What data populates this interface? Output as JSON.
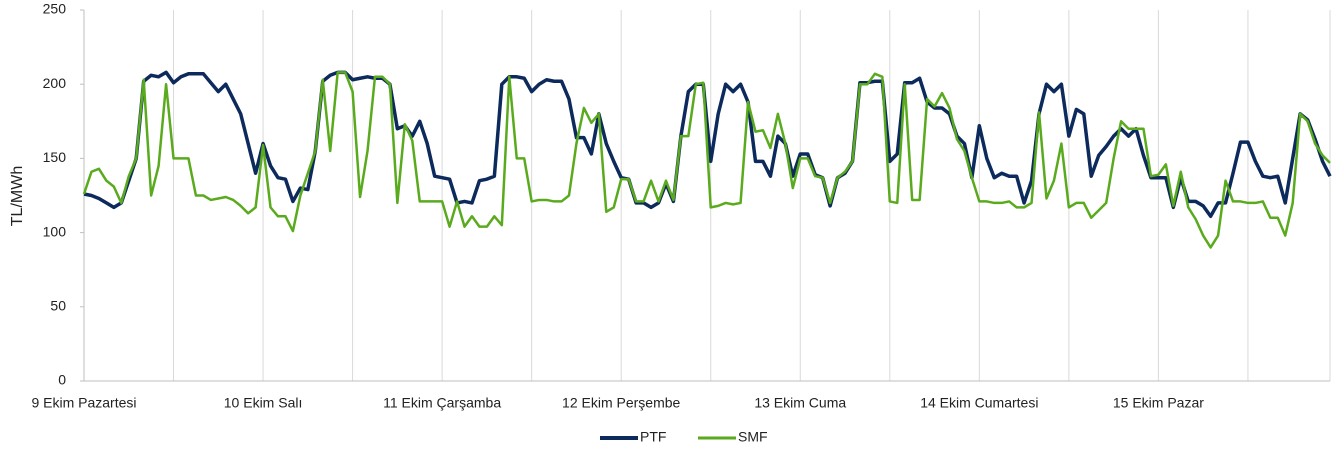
{
  "chart_data": {
    "type": "line",
    "y_label": "TL/MWh",
    "categories": [
      "9 Ekim Pazartesi",
      null,
      null,
      null,
      null,
      null,
      null,
      null,
      null,
      null,
      null,
      null,
      null,
      null,
      null,
      null,
      null,
      null,
      null,
      null,
      null,
      null,
      null,
      null,
      "10 Ekim Salı",
      null,
      null,
      null,
      null,
      null,
      null,
      null,
      null,
      null,
      null,
      null,
      null,
      null,
      null,
      null,
      null,
      null,
      null,
      null,
      null,
      null,
      null,
      null,
      "11 Ekim Çarşamba",
      null,
      null,
      null,
      null,
      null,
      null,
      null,
      null,
      null,
      null,
      null,
      null,
      null,
      null,
      null,
      null,
      null,
      null,
      null,
      null,
      null,
      null,
      null,
      "12 Ekim Perşembe",
      null,
      null,
      null,
      null,
      null,
      null,
      null,
      null,
      null,
      null,
      null,
      null,
      null,
      null,
      null,
      null,
      null,
      null,
      null,
      null,
      null,
      null,
      null,
      "13 Ekim Cuma",
      null,
      null,
      null,
      null,
      null,
      null,
      null,
      null,
      null,
      null,
      null,
      null,
      null,
      null,
      null,
      null,
      null,
      null,
      null,
      null,
      null,
      null,
      null,
      "14 Ekim Cumartesi",
      null,
      null,
      null,
      null,
      null,
      null,
      null,
      null,
      null,
      null,
      null,
      null,
      null,
      null,
      null,
      null,
      null,
      null,
      null,
      null,
      null,
      null,
      null,
      "15 Ekim Pazar",
      null,
      null,
      null,
      null,
      null,
      null,
      null,
      null,
      null,
      null,
      null,
      null,
      null,
      null,
      null,
      null,
      null,
      null,
      null,
      null,
      null,
      null,
      null
    ],
    "series": [
      {
        "name": "PTF",
        "color": "#0d2a5c",
        "values": [
          126,
          125,
          123,
          120,
          117,
          120,
          135,
          150,
          202,
          206,
          205,
          208,
          201,
          205,
          207,
          207,
          207,
          201,
          195,
          200,
          190,
          180,
          160,
          140,
          160,
          145,
          137,
          136,
          121,
          130,
          129,
          155,
          202,
          206,
          208,
          208,
          203,
          204,
          205,
          204,
          204,
          200,
          170,
          172,
          165,
          175,
          160,
          138,
          137,
          136,
          120,
          121,
          120,
          135,
          136,
          138,
          200,
          205,
          205,
          204,
          195,
          200,
          203,
          202,
          202,
          190,
          164,
          164,
          153,
          180,
          160,
          148,
          137,
          136,
          120,
          120,
          117,
          120,
          133,
          121,
          165,
          195,
          200,
          200,
          148,
          180,
          200,
          195,
          200,
          188,
          148,
          148,
          138,
          165,
          160,
          138,
          153,
          153,
          139,
          137,
          118,
          137,
          140,
          148,
          201,
          201,
          202,
          202,
          148,
          153,
          201,
          201,
          204,
          188,
          184,
          184,
          180,
          165,
          160,
          137,
          172,
          150,
          137,
          140,
          138,
          138,
          120,
          135,
          180,
          200,
          195,
          200,
          165,
          183,
          180,
          138,
          152,
          158,
          165,
          170,
          165,
          170,
          152,
          137,
          137,
          137,
          117,
          137,
          121,
          121,
          118,
          111,
          120,
          120,
          140,
          161,
          161,
          148,
          138,
          137,
          138,
          120,
          150,
          180,
          176,
          163,
          148,
          138
        ]
      },
      {
        "name": "SMF",
        "color": "#5aaa1e",
        "values": [
          126,
          141,
          143,
          135,
          131,
          120,
          138,
          150,
          203,
          125,
          145,
          200,
          150,
          150,
          150,
          125,
          125,
          122,
          123,
          124,
          122,
          118,
          113,
          117,
          159,
          117,
          111,
          111,
          101,
          125,
          140,
          155,
          203,
          155,
          208,
          208,
          195,
          124,
          155,
          205,
          205,
          200,
          120,
          173,
          162,
          121,
          121,
          121,
          121,
          104,
          121,
          104,
          111,
          104,
          104,
          111,
          105,
          205,
          150,
          150,
          121,
          122,
          122,
          121,
          121,
          125,
          160,
          184,
          174,
          180,
          114,
          117,
          136,
          136,
          121,
          121,
          135,
          121,
          135,
          122,
          165,
          165,
          200,
          201,
          117,
          118,
          120,
          119,
          120,
          188,
          168,
          169,
          157,
          180,
          160,
          130,
          150,
          150,
          138,
          137,
          120,
          137,
          141,
          148,
          200,
          200,
          207,
          205,
          121,
          120,
          200,
          122,
          122,
          190,
          185,
          194,
          184,
          163,
          155,
          137,
          121,
          121,
          120,
          120,
          121,
          117,
          117,
          120,
          181,
          123,
          135,
          160,
          117,
          120,
          120,
          110,
          115,
          120,
          150,
          175,
          170,
          170,
          170,
          138,
          139,
          146,
          118,
          141,
          117,
          109,
          98,
          90,
          98,
          135,
          121,
          121,
          120,
          120,
          121,
          110,
          110,
          98,
          120,
          180,
          175,
          160,
          152,
          147
        ]
      }
    ],
    "ylim": [
      0,
      250
    ],
    "yticks": [
      0,
      50,
      100,
      150,
      200,
      250
    ],
    "legend": "bottom"
  }
}
